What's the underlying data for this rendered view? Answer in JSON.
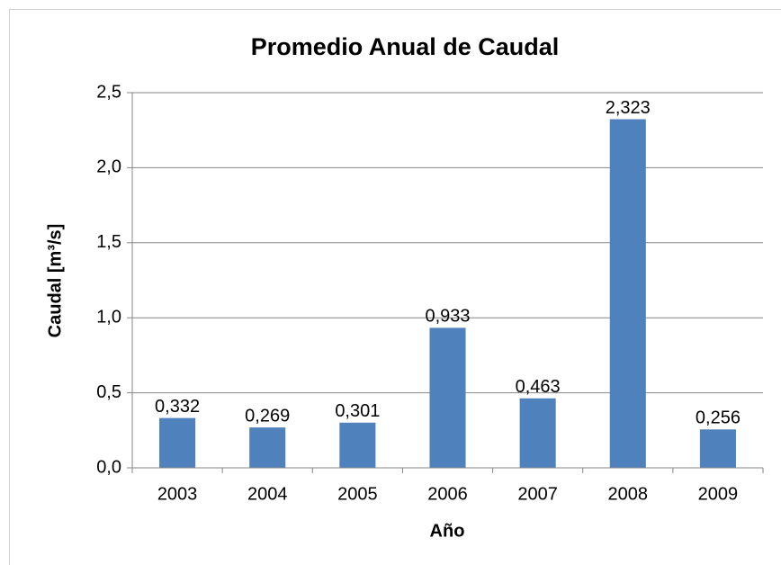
{
  "chart_data": {
    "type": "bar",
    "title": "Promedio Anual de Caudal",
    "x_label": "Año",
    "y_label": "Caudal [m³/s]",
    "categories": [
      "2003",
      "2004",
      "2005",
      "2006",
      "2007",
      "2008",
      "2009"
    ],
    "values": [
      0.332,
      0.269,
      0.301,
      0.933,
      0.463,
      2.323,
      0.256
    ],
    "value_labels": [
      "0,332",
      "0,269",
      "0,301",
      "0,933",
      "0,463",
      "2,323",
      "0,256"
    ],
    "color": "#4f81bd",
    "ylim": [
      0,
      2.5
    ],
    "yticks": [
      {
        "value": 0,
        "label": "0,0"
      },
      {
        "value": 0.5,
        "label": "0,5"
      },
      {
        "value": 1,
        "label": "1,0"
      },
      {
        "value": 1.5,
        "label": "1,5"
      },
      {
        "value": 2,
        "label": "2,0"
      },
      {
        "value": 2.5,
        "label": "2,5"
      }
    ],
    "grid": true
  }
}
